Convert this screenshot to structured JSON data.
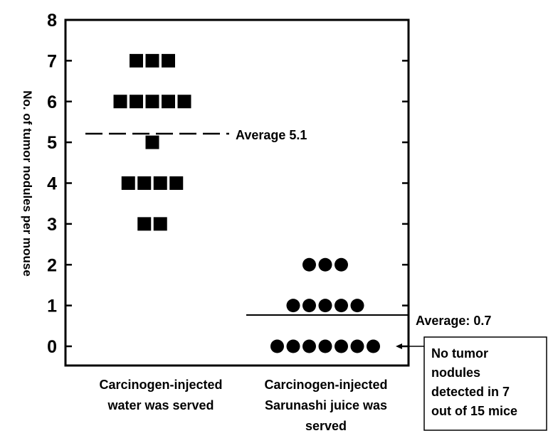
{
  "chart_data": {
    "type": "scatter",
    "ylabel": "No. of tumor nodules per mouse",
    "ylim": [
      -0.5,
      8
    ],
    "yticks": [
      0,
      1,
      2,
      3,
      4,
      5,
      6,
      7,
      8
    ],
    "groups": [
      {
        "label_lines": [
          "Carcinogen-injected",
          "water was served"
        ],
        "marker": "square",
        "values": [
          7,
          7,
          7,
          6,
          6,
          6,
          6,
          6,
          5,
          4,
          4,
          4,
          4,
          3,
          3
        ],
        "average": 5.1,
        "average_line": "dashed",
        "average_label": "Average 5.1"
      },
      {
        "label_lines": [
          "Carcinogen-injected",
          "Sarunashi juice was",
          "served"
        ],
        "marker": "circle",
        "values": [
          2,
          2,
          2,
          1,
          1,
          1,
          1,
          1,
          0,
          0,
          0,
          0,
          0,
          0,
          0
        ],
        "average": 0.7,
        "average_line": "solid",
        "average_label": "Average: 0.7"
      }
    ],
    "annotation": {
      "lines": [
        "No tumor",
        "nodules",
        "detected in 7",
        "out of 15 mice"
      ]
    }
  }
}
